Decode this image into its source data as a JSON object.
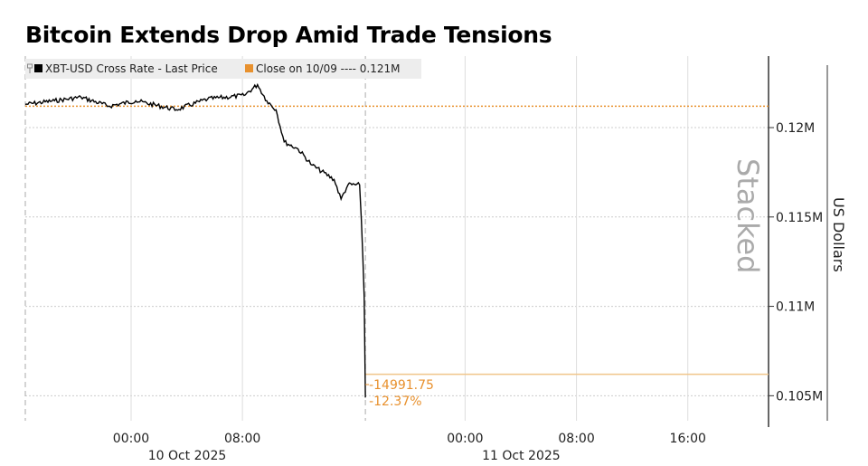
{
  "title": "Bitcoin Extends Drop Amid Trade Tensions",
  "chart_data": {
    "type": "line",
    "title": "Bitcoin Extends Drop Amid Trade Tensions",
    "ylabel": "US Dollars",
    "watermark": "Stacked",
    "xlim": [
      "2025-10-09T16:24",
      "2025-10-11T21:48"
    ],
    "ylim": [
      0.1036,
      0.124
    ],
    "y_unit": "M",
    "grid": true,
    "legend_position": "top-left",
    "legend": [
      {
        "label": "XBT-USD Cross Rate - Last Price",
        "color": "#000000"
      },
      {
        "label": "Close on 10/09 ---- 0.121M",
        "color": "#e8912e"
      }
    ],
    "x_ticks": [
      {
        "t": "2025-10-10T00:00",
        "label": "00:00",
        "date": "10 Oct 2025"
      },
      {
        "t": "2025-10-10T08:00",
        "label": "08:00"
      },
      {
        "t": "2025-10-11T00:00",
        "label": "00:00",
        "date": "11 Oct 2025"
      },
      {
        "t": "2025-10-11T08:00",
        "label": "08:00"
      },
      {
        "t": "2025-10-11T16:00",
        "label": "16:00"
      }
    ],
    "y_ticks": [
      {
        "v": 0.12,
        "label": "0.12M"
      },
      {
        "v": 0.115,
        "label": "0.115M"
      },
      {
        "v": 0.11,
        "label": "0.11M"
      },
      {
        "v": 0.105,
        "label": "0.105M"
      }
    ],
    "series": [
      {
        "name": "XBT-USD Cross Rate - Last Price",
        "color": "#000000",
        "points": [
          [
            "2025-10-09T16:24",
            0.1213
          ],
          [
            "2025-10-09T18:30",
            0.1215
          ],
          [
            "2025-10-09T20:24",
            0.1217
          ],
          [
            "2025-10-09T22:24",
            0.1212
          ],
          [
            "2025-10-10T00:20",
            0.1215
          ],
          [
            "2025-10-10T03:15",
            0.121
          ],
          [
            "2025-10-10T05:30",
            0.1216
          ],
          [
            "2025-10-10T08:07",
            0.1218
          ],
          [
            "2025-10-10T09:05",
            0.1224
          ],
          [
            "2025-10-10T09:45",
            0.1215
          ],
          [
            "2025-10-10T10:25",
            0.121
          ],
          [
            "2025-10-10T11:00",
            0.1192
          ],
          [
            "2025-10-10T12:00",
            0.1188
          ],
          [
            "2025-10-10T13:00",
            0.1179
          ],
          [
            "2025-10-10T14:35",
            0.1171
          ],
          [
            "2025-10-10T15:05",
            0.116
          ],
          [
            "2025-10-10T15:35",
            0.1168
          ],
          [
            "2025-10-10T16:25",
            0.1168
          ],
          [
            "2025-10-10T16:33",
            0.1148
          ],
          [
            "2025-10-10T16:45",
            0.1105
          ],
          [
            "2025-10-10T16:50",
            0.1049
          ]
        ]
      }
    ],
    "reference_lines": [
      {
        "value": 0.1212,
        "style": "dotted",
        "color": "#e8912e",
        "label": "Close on 10/09"
      },
      {
        "value": 0.1062,
        "style": "solid",
        "color": "#f0c58a"
      }
    ],
    "vertical_markers": [
      "2025-10-09T16:24",
      "2025-10-10T16:50"
    ],
    "annotations": [
      {
        "text": "-14991.75",
        "color": "#e8912e"
      },
      {
        "text": "-12.37%",
        "color": "#e8912e"
      }
    ]
  }
}
